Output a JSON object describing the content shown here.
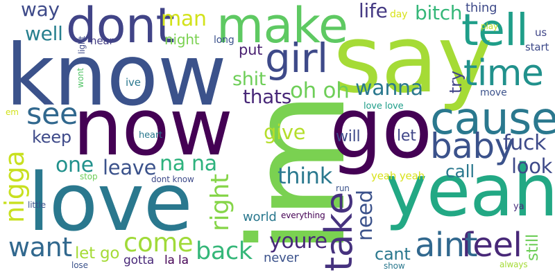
{
  "words": [
    {
      "text": "im",
      "color": "#7ad151"
    },
    {
      "text": "say",
      "color": "#a5db36"
    },
    {
      "text": "know",
      "color": "#3b528b"
    },
    {
      "text": "now",
      "color": "#440154"
    },
    {
      "text": "go",
      "color": "#440154"
    },
    {
      "text": "love",
      "color": "#2a788e"
    },
    {
      "text": "yeah",
      "color": "#22a884"
    },
    {
      "text": "dont",
      "color": "#414487"
    },
    {
      "text": "make",
      "color": "#5ec962"
    },
    {
      "text": "cause",
      "color": "#2a788e"
    },
    {
      "text": "tell",
      "color": "#1f9e89"
    },
    {
      "text": "girl",
      "color": "#3e4a89"
    },
    {
      "text": "time",
      "color": "#21918c"
    },
    {
      "text": "take",
      "color": "#46327e"
    },
    {
      "text": "baby",
      "color": "#3b528b"
    },
    {
      "text": "come",
      "color": "#a0da39"
    },
    {
      "text": "nigga",
      "color": "#c8e020"
    },
    {
      "text": "feel",
      "color": "#482878"
    },
    {
      "text": "aint",
      "color": "#31688e"
    },
    {
      "text": "see",
      "color": "#31688e"
    },
    {
      "text": "want",
      "color": "#31688e"
    },
    {
      "text": "right",
      "color": "#86d549"
    },
    {
      "text": "back",
      "color": "#35b779"
    },
    {
      "text": "youre",
      "color": "#482878"
    },
    {
      "text": "oh oh",
      "color": "#6ece58"
    },
    {
      "text": "na na",
      "color": "#2db27d"
    },
    {
      "text": "fuck",
      "color": "#3e4a89"
    },
    {
      "text": "think",
      "color": "#2a788e"
    },
    {
      "text": "wanna",
      "color": "#2a788e"
    },
    {
      "text": "one",
      "color": "#21918c"
    },
    {
      "text": "leave",
      "color": "#3b528b"
    },
    {
      "text": "give",
      "color": "#b5de2b"
    },
    {
      "text": "look",
      "color": "#3e4a89"
    },
    {
      "text": "need",
      "color": "#3b528b"
    },
    {
      "text": "bitch",
      "color": "#35b779"
    },
    {
      "text": "man",
      "color": "#d2e21b"
    },
    {
      "text": "shit",
      "color": "#6ece58"
    },
    {
      "text": "thats",
      "color": "#482878"
    },
    {
      "text": "life",
      "color": "#443983"
    },
    {
      "text": "way",
      "color": "#3e4a89"
    },
    {
      "text": "well",
      "color": "#277f8e"
    },
    {
      "text": "keep",
      "color": "#3e4a89"
    },
    {
      "text": "ill",
      "color": "#5ec962"
    },
    {
      "text": "cant",
      "color": "#2a788e"
    },
    {
      "text": "still",
      "color": "#6ece58"
    },
    {
      "text": "call",
      "color": "#2a788e"
    },
    {
      "text": "let go",
      "color": "#a5db36"
    },
    {
      "text": "night",
      "color": "#7ad151"
    },
    {
      "text": "let",
      "color": "#404688"
    },
    {
      "text": "put",
      "color": "#481f70"
    },
    {
      "text": "try",
      "color": "#414487"
    },
    {
      "text": "will",
      "color": "#3e4a89"
    },
    {
      "text": "thing",
      "color": "#3e4a89"
    },
    {
      "text": "never",
      "color": "#3b528b"
    },
    {
      "text": "world",
      "color": "#2a788e"
    },
    {
      "text": "la la",
      "color": "#440154"
    },
    {
      "text": "gotta",
      "color": "#482878"
    },
    {
      "text": "us",
      "color": "#404688"
    },
    {
      "text": "start",
      "color": "#3e4a89"
    },
    {
      "text": "hear",
      "color": "#433e85"
    },
    {
      "text": "long",
      "color": "#3b528b"
    },
    {
      "text": "ive",
      "color": "#2a788e"
    },
    {
      "text": "move",
      "color": "#3b528b"
    },
    {
      "text": "love love",
      "color": "#1f9e89"
    },
    {
      "text": "yeah yeah",
      "color": "#d8e219"
    },
    {
      "text": "play",
      "color": "#bddf26"
    },
    {
      "text": "day",
      "color": "#d8e219"
    },
    {
      "text": "heart",
      "color": "#2a788e"
    },
    {
      "text": "dont know",
      "color": "#3e4a89"
    },
    {
      "text": "stop",
      "color": "#6ece58"
    },
    {
      "text": "little",
      "color": "#3b528b"
    },
    {
      "text": "run",
      "color": "#3b528b"
    },
    {
      "text": "everything",
      "color": "#440154"
    },
    {
      "text": "show",
      "color": "#2a788e"
    },
    {
      "text": "always",
      "color": "#a5db36"
    },
    {
      "text": "lose",
      "color": "#3b528b"
    },
    {
      "text": "ya",
      "color": "#472d7b"
    },
    {
      "text": "em",
      "color": "#d2e21b"
    },
    {
      "text": "wont",
      "color": "#54c568"
    },
    {
      "text": "light",
      "color": "#3e4a89"
    }
  ]
}
